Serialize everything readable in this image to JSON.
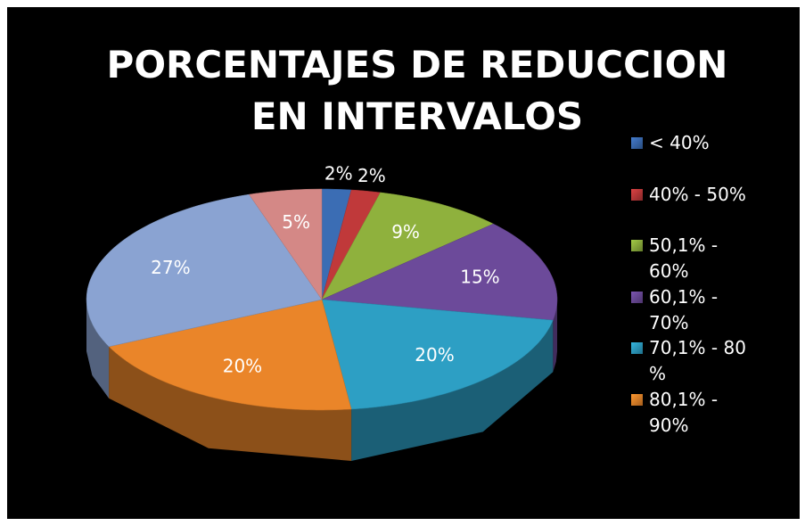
{
  "chart_data": {
    "type": "pie",
    "title": "PORCENTAJES DE REDUCCION EN INTERVALOS",
    "categories": [
      "< 40%",
      "40% - 50%",
      "50,1% - 60%",
      "60,1% - 70%",
      "70,1% - 80 %",
      "80,1% - 90%",
      null,
      null
    ],
    "values": [
      2,
      2,
      9,
      15,
      20,
      20,
      27,
      5
    ],
    "value_labels": [
      "2%",
      "2%",
      "9%",
      "15%",
      "20%",
      "20%",
      "27%",
      "5%"
    ],
    "colors": [
      "#3b6db4",
      "#c0393a",
      "#8fb13d",
      "#6c4a9a",
      "#2d9fc4",
      "#ea8529",
      "#8aa3d2",
      "#d48886"
    ]
  }
}
